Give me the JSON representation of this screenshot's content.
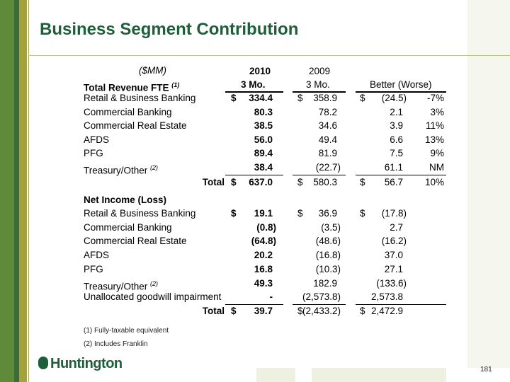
{
  "title": "Business Segment Contribution",
  "units": "($MM)",
  "headers": {
    "col2010_year": "2010",
    "col2010_period": "3 Mo.",
    "col2009_year": "2009",
    "col2009_period": "3 Mo.",
    "change": "Better (Worse)"
  },
  "revenue": {
    "heading": "Total Revenue FTE",
    "heading_note": "(1)",
    "rows": [
      {
        "label": "Retail & Business Banking",
        "d1": "$",
        "v2010": "334.4",
        "d2": "$",
        "v2009": "358.9",
        "d3": "$",
        "diff": "(24.5)",
        "pct": "-7%"
      },
      {
        "label": "Commercial Banking",
        "v2010": "80.3",
        "v2009": "78.2",
        "diff": "2.1",
        "pct": "3%"
      },
      {
        "label": "Commercial Real Estate",
        "v2010": "38.5",
        "v2009": "34.6",
        "diff": "3.9",
        "pct": "11%"
      },
      {
        "label": "AFDS",
        "v2010": "56.0",
        "v2009": "49.4",
        "diff": "6.6",
        "pct": "13%"
      },
      {
        "label": "PFG",
        "v2010": "89.4",
        "v2009": "81.9",
        "diff": "7.5",
        "pct": "9%"
      },
      {
        "label": "Treasury/Other",
        "note": "(2)",
        "v2010": "38.4",
        "v2009": "(22.7)",
        "diff": "61.1",
        "pct": "NM"
      }
    ],
    "total": {
      "label": "Total",
      "d1": "$",
      "v2010": "637.0",
      "d2": "$",
      "v2009": "580.3",
      "d3": "$",
      "diff": "56.7",
      "pct": "10%"
    }
  },
  "net_income": {
    "heading": "Net Income (Loss)",
    "rows": [
      {
        "label": "Retail & Business Banking",
        "d1": "$",
        "v2010": "19.1",
        "d2": "$",
        "v2009": "36.9",
        "d3": "$",
        "diff": "(17.8)"
      },
      {
        "label": "Commercial Banking",
        "v2010": "(0.8)",
        "v2009": "(3.5)",
        "diff": "2.7"
      },
      {
        "label": "Commercial Real Estate",
        "v2010": "(64.8)",
        "v2009": "(48.6)",
        "diff": "(16.2)"
      },
      {
        "label": "AFDS",
        "v2010": "20.2",
        "v2009": "(16.8)",
        "diff": "37.0"
      },
      {
        "label": "PFG",
        "v2010": "16.8",
        "v2009": "(10.3)",
        "diff": "27.1"
      },
      {
        "label": "Treasury/Other",
        "note": "(2)",
        "v2010": "49.3",
        "v2009": "182.9",
        "diff": "(133.6)"
      },
      {
        "label": "Unallocated goodwill impairment",
        "v2010": "-",
        "v2009": "(2,573.8)",
        "diff": "2,573.8"
      }
    ],
    "total": {
      "label": "Total",
      "d1": "$",
      "v2010": "39.7",
      "d2": "$",
      "v2009": "(2,433.2)",
      "d3": "$",
      "diff": "2,472.9"
    }
  },
  "footnotes": [
    "(1) Fully-taxable equivalent",
    "(2) Includes Franklin"
  ],
  "logo": "Huntington",
  "page_number": "181",
  "colors": {
    "title": "#1e5e3a",
    "sidebar_green": "#5f8a3a",
    "sidebar_dark": "#3d6b35",
    "sidebar_olive": "#a6a23a"
  }
}
